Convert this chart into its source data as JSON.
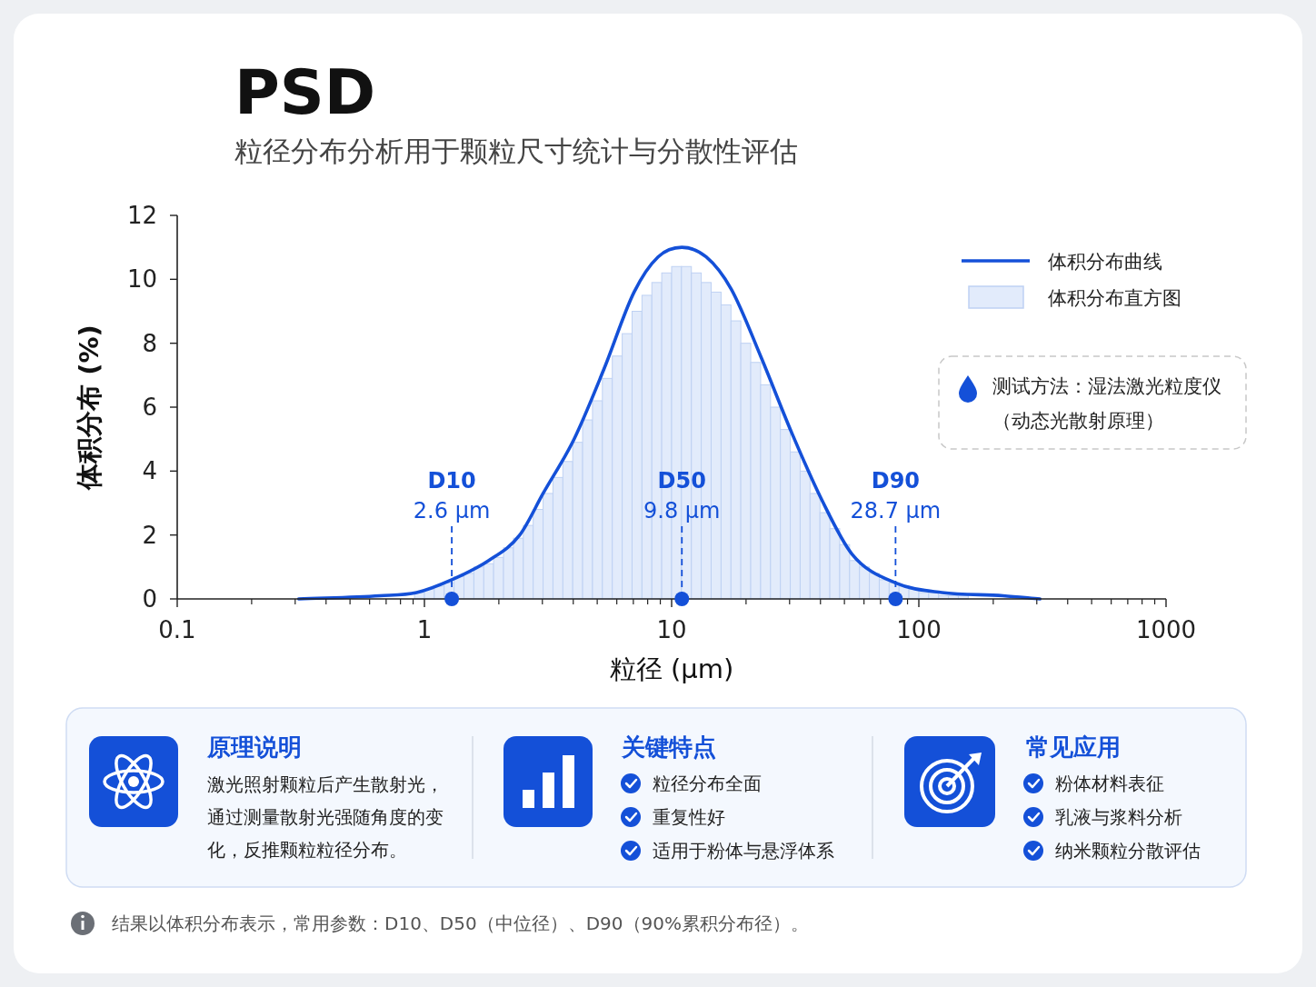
{
  "chart_data": {
    "type": "line",
    "title": "PSD",
    "subtitle": "粒径分布分析用于颗粒尺寸统计与分散性评估",
    "xlabel": "粒径 (µm)",
    "ylabel": "体积分布 (%)",
    "log": "x",
    "xlim": [
      0.1,
      1000
    ],
    "xticks": [
      0.1,
      1,
      10,
      100,
      1000
    ],
    "ylim": [
      0,
      12
    ],
    "yticks": [
      0,
      2,
      4,
      6,
      8,
      10,
      12
    ],
    "legend": "top right",
    "marker": "none",
    "series": [
      {
        "name": "体积分布曲线",
        "type": "line",
        "color": "#1450d8",
        "x": [
          0.31,
          0.66,
          0.93,
          1.29,
          1.82,
          2.43,
          3.02,
          4.03,
          5.33,
          7.05,
          8.81,
          11.0,
          13.8,
          17.4,
          22.9,
          30.6,
          40.5,
          53.7,
          80.5,
          124,
          219,
          309
        ],
        "values": [
          0.0,
          0.1,
          0.2,
          0.6,
          1.2,
          2.0,
          3.3,
          5.0,
          7.2,
          9.6,
          10.7,
          11.0,
          10.7,
          9.7,
          7.6,
          5.2,
          3.1,
          1.4,
          0.5,
          0.2,
          0.1,
          0.0
        ]
      },
      {
        "name": "体积分布直方图",
        "type": "histogram",
        "color": "#e2ebfb",
        "bins": [
          0.912,
          1,
          1.096,
          1.202,
          1.318,
          1.445,
          1.585,
          1.738,
          1.905,
          2.089,
          2.291,
          2.512,
          2.754,
          3.02,
          3.311,
          3.631,
          3.981,
          4.365,
          4.786,
          5.248,
          5.754,
          6.31,
          6.918,
          7.586,
          8.318,
          9.12,
          10,
          10.96,
          12.02,
          13.18,
          14.45,
          15.85,
          17.38,
          19.05,
          20.89,
          22.91,
          25.12,
          27.54,
          30.2,
          33.11,
          36.31,
          39.81,
          43.65,
          47.86,
          52.48,
          57.54,
          63.1,
          69.18,
          75.86,
          83.18,
          91.2,
          100,
          109.6,
          120.2,
          131.8,
          144.5,
          158.5
        ],
        "values": [
          0.2,
          0.3,
          0.4,
          0.5,
          0.7,
          0.8,
          1.0,
          1.1,
          1.3,
          1.6,
          1.9,
          2.3,
          2.8,
          3.3,
          3.8,
          4.3,
          4.9,
          5.6,
          6.2,
          6.9,
          7.6,
          8.3,
          9.0,
          9.5,
          9.9,
          10.2,
          10.4,
          10.4,
          10.2,
          9.9,
          9.6,
          9.2,
          8.7,
          8.0,
          7.4,
          6.7,
          6.0,
          5.3,
          4.6,
          4.0,
          3.3,
          2.7,
          2.2,
          1.7,
          1.2,
          1.0,
          0.8,
          0.6,
          0.5,
          0.4,
          0.3,
          0.2,
          0.2,
          0.1,
          0.1,
          0.1
        ]
      }
    ],
    "ref_lines": [
      {
        "axis": "x",
        "value": 1.29,
        "label": "D10 2.6 µm",
        "color": "#1450d8",
        "line_style": "dashed"
      },
      {
        "axis": "x",
        "value": 11.0,
        "label": "D50 9.8 µm",
        "color": "#1450d8",
        "line_style": "dashed"
      },
      {
        "axis": "x",
        "value": 80.5,
        "label": "D90 28.7 µm",
        "color": "#1450d8",
        "line_style": "dashed"
      }
    ],
    "annotations": [
      "测试方法：湿法激光粒度仪",
      "（动态光散射原理）",
      "原理说明",
      "激光照射颗粒后产生散射光，通过测量散射光强随角度的变化，反推颗粒粒径分布。",
      "关键特点",
      "粒径分布全面",
      "重复性好",
      "适用于粉体与悬浮体系",
      "常见应用",
      "粉体材料表征",
      "乳液与浆料分析",
      "纳米颗粒分散评估",
      "结果以体积分布表示，常用参数：D10、D50（中位径）、D90（90%累积分布径）。"
    ]
  }
}
